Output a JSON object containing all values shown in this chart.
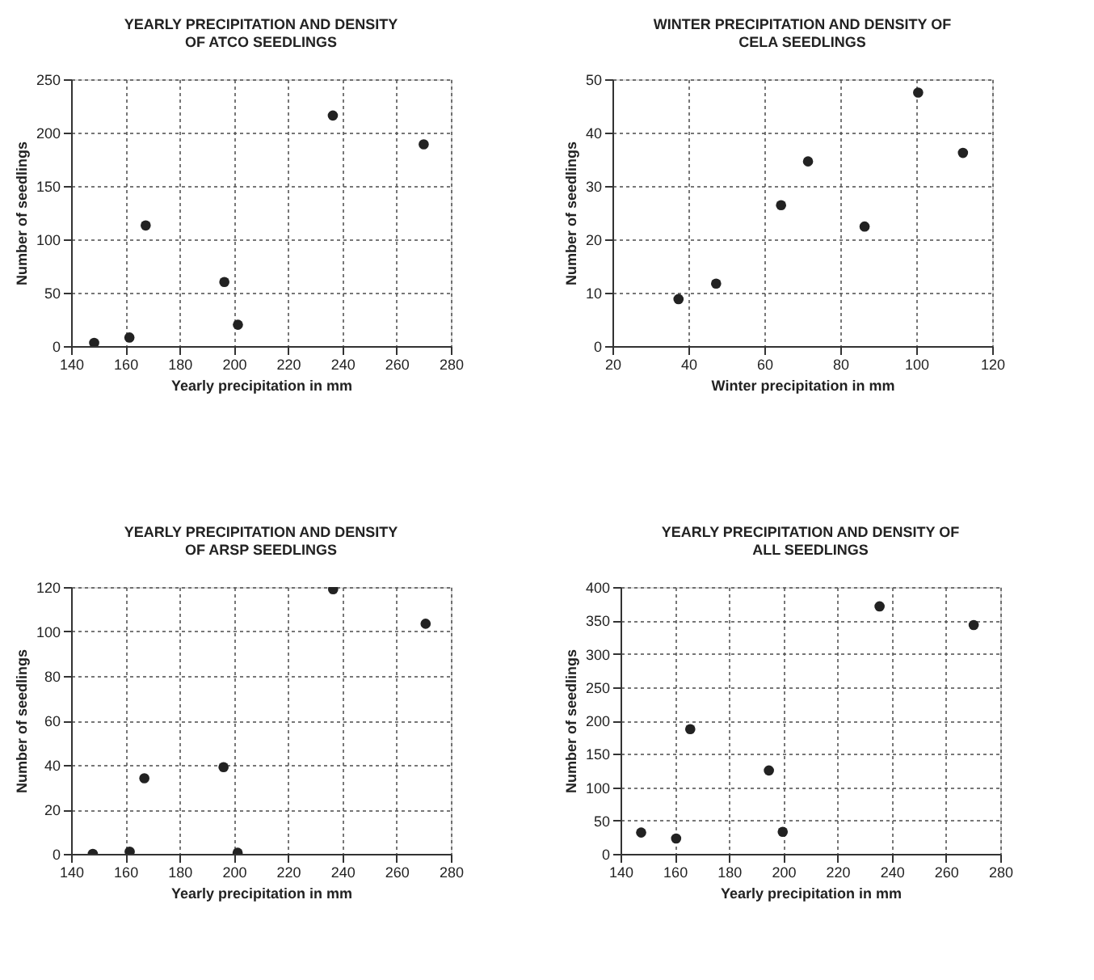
{
  "chart_data": [
    {
      "type": "scatter",
      "title": "YEARLY PRECIPITATION AND DENSITY\nOF ATCO SEEDLINGS",
      "xlabel": "Yearly precipitation in mm",
      "ylabel": "Number of seedlings",
      "x": [
        148.5,
        161.5,
        167.5,
        196.5,
        201.5,
        236.5,
        270
      ],
      "series": [
        {
          "color": "#222222",
          "values": [
            3,
            8,
            113,
            60,
            20,
            216,
            189
          ]
        }
      ],
      "xlim": [
        140,
        280
      ],
      "xticks": [
        140,
        160,
        180,
        200,
        220,
        240,
        260,
        280
      ],
      "ylim": [
        0,
        250
      ],
      "yticks": [
        0,
        50,
        100,
        150,
        200,
        250
      ],
      "grid": true,
      "marker": "circle"
    },
    {
      "type": "scatter",
      "title": "WINTER PRECIPITATION AND DENSITY OF\nCELA SEEDLINGS",
      "xlabel": "Winter precipitation in mm",
      "ylabel": "Number of seedlings",
      "x": [
        37.4,
        47.3,
        64.4,
        71.5,
        86.4,
        100.5,
        112.3
      ],
      "series": [
        {
          "color": "#222222",
          "values": [
            8.8,
            11.7,
            26.4,
            34.6,
            22.4,
            47.5,
            36.2
          ]
        }
      ],
      "xlim": [
        20,
        120
      ],
      "xticks": [
        20,
        40,
        60,
        80,
        100,
        120
      ],
      "ylim": [
        0,
        50
      ],
      "yticks": [
        0,
        10,
        20,
        30,
        40,
        50
      ],
      "grid": true,
      "marker": "circle"
    },
    {
      "type": "scatter",
      "title": "YEARLY PRECIPITATION AND DENSITY\nOF ARSP SEEDLINGS",
      "xlabel": "Yearly precipitation in mm",
      "ylabel": "Number of seedlings",
      "x": [
        148,
        161.6,
        167,
        196.2,
        201.4,
        236.6,
        270.7
      ],
      "series": [
        {
          "color": "#222222",
          "values": [
            0,
            1,
            34,
            39,
            0.5,
            119,
            103.5
          ]
        }
      ],
      "xlim": [
        140,
        280
      ],
      "xticks": [
        140,
        160,
        180,
        200,
        220,
        240,
        260,
        280
      ],
      "ylim": [
        0,
        120
      ],
      "yticks": [
        0,
        20,
        40,
        60,
        80,
        100,
        120
      ],
      "grid": true,
      "marker": "circle"
    },
    {
      "type": "scatter",
      "title": "YEARLY PRECIPITATION AND DENSITY OF\nALL SEEDLINGS",
      "xlabel": "Yearly precipitation in mm",
      "ylabel": "Number of seedlings",
      "x": [
        147.6,
        160.5,
        165.7,
        194.7,
        199.8,
        235.5,
        270.2
      ],
      "series": [
        {
          "color": "#222222",
          "values": [
            32,
            23,
            187,
            125,
            33,
            371,
            343
          ]
        }
      ],
      "xlim": [
        140,
        280
      ],
      "xticks": [
        140,
        160,
        180,
        200,
        220,
        240,
        260,
        280
      ],
      "ylim": [
        0,
        400
      ],
      "yticks": [
        0,
        50,
        100,
        150,
        200,
        250,
        300,
        350,
        400
      ],
      "grid": true,
      "marker": "circle"
    }
  ]
}
